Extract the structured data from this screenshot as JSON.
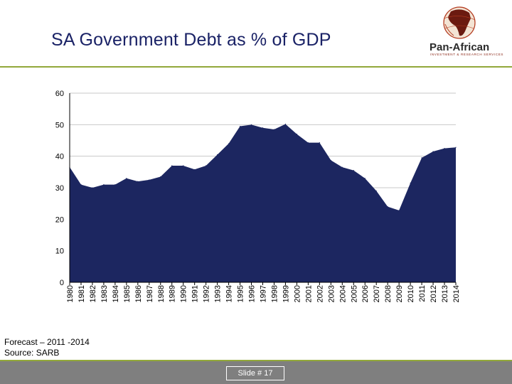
{
  "slide": {
    "title": "SA Government Debt as % of GDP",
    "logo_name": "Pan-African",
    "logo_tagline": "INVESTMENT & RESEARCH SERVICES",
    "forecast_note": "Forecast – 2011 -2014",
    "source_note": "Source: SARB",
    "slide_number": "Slide # 17"
  },
  "colors": {
    "area_fill": "#1c2660",
    "title": "#1a2266",
    "accent_rule": "#92a83a",
    "footer": "#7f7f7f"
  },
  "chart_data": {
    "type": "area",
    "title": "SA Government Debt as % of GDP",
    "xlabel": "",
    "ylabel": "",
    "ylim": [
      0,
      60
    ],
    "yticks": [
      0,
      10,
      20,
      30,
      40,
      50,
      60
    ],
    "grid": true,
    "categories": [
      "1980",
      "1981",
      "1982",
      "1983",
      "1984",
      "1985",
      "1986",
      "1987",
      "1988",
      "1989",
      "1990",
      "1991",
      "1992",
      "1993",
      "1994",
      "1995",
      "1996",
      "1997",
      "1998",
      "1999",
      "2000",
      "2001",
      "2002",
      "2003",
      "2004",
      "2005",
      "2006",
      "2007",
      "2008",
      "2009",
      "2010",
      "2011",
      "2012",
      "2013",
      "2014"
    ],
    "series": [
      {
        "name": "Debt as % of GDP",
        "values": [
          36.5,
          31,
          30,
          31,
          31,
          33,
          32,
          32.5,
          33.5,
          37,
          37,
          35.8,
          37,
          40.5,
          44,
          49.5,
          50,
          49,
          48.5,
          50.2,
          47,
          44.3,
          44.3,
          38.7,
          36.5,
          35.5,
          33,
          29,
          24,
          22.8,
          31.5,
          39.5,
          41.5,
          42.5,
          42.8
        ]
      }
    ]
  }
}
